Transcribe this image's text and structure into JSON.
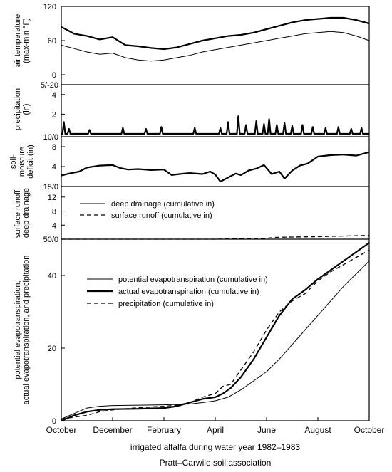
{
  "chart_data": {
    "type": "line",
    "shared_x": {
      "label": "irrigated alfalfa during water year 1982–1983",
      "ticks": [
        "October",
        "December",
        "February",
        "April",
        "June",
        "August",
        "October"
      ],
      "range": [
        0,
        12
      ],
      "tick_positions": [
        0,
        2,
        4,
        6,
        8,
        10,
        12
      ]
    },
    "footer": "Pratt–Carwile soil association",
    "panels": [
      {
        "id": "air-temperature",
        "ylabel": [
          "air temperature",
          "(max-min °F)"
        ],
        "yticks": [
          "120",
          "60",
          "0"
        ],
        "ytick_values": [
          120,
          60,
          0
        ],
        "ylim": [
          0,
          120
        ],
        "series": [
          {
            "style": "solid-thick",
            "x": [
              0,
              0.5,
              1,
              1.5,
              2,
              2.5,
              3,
              3.5,
              4,
              4.5,
              5,
              5.5,
              6,
              6.5,
              7,
              7.5,
              8,
              8.5,
              9,
              9.5,
              10,
              10.5,
              11,
              11.5,
              12
            ],
            "y": [
              84,
              72,
              68,
              62,
              66,
              52,
              50,
              47,
              45,
              48,
              54,
              60,
              64,
              68,
              70,
              74,
              80,
              86,
              92,
              96,
              98,
              100,
              100,
              96,
              90
            ]
          },
          {
            "style": "solid-thin",
            "x": [
              0,
              0.5,
              1,
              1.5,
              2,
              2.5,
              3,
              3.5,
              4,
              4.5,
              5,
              5.5,
              6,
              6.5,
              7,
              7.5,
              8,
              8.5,
              9,
              9.5,
              10,
              10.5,
              11,
              11.5,
              12
            ],
            "y": [
              52,
              46,
              40,
              36,
              38,
              30,
              26,
              24,
              26,
              30,
              34,
              40,
              44,
              48,
              52,
              56,
              60,
              64,
              68,
              72,
              74,
              76,
              74,
              68,
              60
            ]
          }
        ]
      },
      {
        "id": "precipitation",
        "ylabel": [
          "precipitation",
          "(in)"
        ],
        "yticks": [
          "4",
          "2"
        ],
        "ytick_values": [
          4,
          2
        ],
        "ylim": [
          0,
          5
        ],
        "top_label": "5/-20",
        "series": [
          {
            "style": "solid-thick",
            "x": [
              0.1,
              0.3,
              1.1,
              2.4,
              3.3,
              3.9,
              5.2,
              6.2,
              6.5,
              6.9,
              7.2,
              7.6,
              7.9,
              8.1,
              8.4,
              8.7,
              9.0,
              9.4,
              9.8,
              10.3,
              10.8,
              11.3,
              11.7
            ],
            "y": [
              1.2,
              0.5,
              0.4,
              0.6,
              0.5,
              0.7,
              0.6,
              0.6,
              1.2,
              1.8,
              0.9,
              1.3,
              1.0,
              1.5,
              0.9,
              1.1,
              0.8,
              0.9,
              0.7,
              0.6,
              0.7,
              0.5,
              0.6
            ]
          }
        ]
      },
      {
        "id": "soil-moisture-deficit",
        "ylabel": [
          "soil-",
          "moisture",
          "deficit (in)"
        ],
        "yticks": [
          "8",
          "4"
        ],
        "ytick_values": [
          8,
          4
        ],
        "ylim": [
          0,
          10
        ],
        "top_label": "10/0",
        "series": [
          {
            "style": "solid-thick",
            "x": [
              0,
              0.3,
              0.7,
              1,
              1.5,
              2,
              2.3,
              2.6,
              3,
              3.5,
              4,
              4.3,
              4.6,
              5,
              5.5,
              5.8,
              6,
              6.2,
              6.5,
              6.8,
              7,
              7.3,
              7.6,
              7.9,
              8.2,
              8.5,
              8.7,
              9,
              9.3,
              9.6,
              10,
              10.5,
              11,
              11.5,
              12
            ],
            "y": [
              2.2,
              2.6,
              3.0,
              3.8,
              4.2,
              4.3,
              3.7,
              3.4,
              3.5,
              3.3,
              3.4,
              2.3,
              2.5,
              2.7,
              2.5,
              3.0,
              2.4,
              1.0,
              1.8,
              2.6,
              2.3,
              3.2,
              3.6,
              4.3,
              2.5,
              3.0,
              1.6,
              3.2,
              4.2,
              4.6,
              6.0,
              6.3,
              6.4,
              6.2,
              6.9
            ]
          }
        ]
      },
      {
        "id": "surface-runoff-deep-drainage",
        "ylabel": [
          "surface runoff,",
          "deep drainage"
        ],
        "yticks": [
          "12",
          "8",
          "4"
        ],
        "ytick_values": [
          12,
          8,
          4
        ],
        "ylim": [
          0,
          15
        ],
        "top_label": "15/0",
        "legend": [
          "deep drainage (cumulative in)",
          "surface runoff (cumulative in)"
        ],
        "series": [
          {
            "name": "deep drainage (cumulative in)",
            "style": "solid-thin",
            "x": [
              0,
              12
            ],
            "y": [
              0,
              0
            ]
          },
          {
            "name": "surface runoff (cumulative in)",
            "style": "dashed",
            "x": [
              0,
              6,
              6.5,
              7.5,
              8,
              8.3,
              9,
              10,
              11,
              12
            ],
            "y": [
              0,
              0,
              0.1,
              0.2,
              0.25,
              0.5,
              0.6,
              0.7,
              0.9,
              1.1
            ]
          }
        ]
      },
      {
        "id": "evapotranspiration-precipitation",
        "ylabel": [
          "potential evapotranspiration,",
          "actual evapotranspiration, and precipitation"
        ],
        "yticks": [
          "40",
          "20",
          "0"
        ],
        "ytick_values": [
          40,
          20,
          0
        ],
        "ylim": [
          0,
          50
        ],
        "top_label": "50/0",
        "legend": [
          "potential evapotranspiration (cumulative in)",
          "actual evapotranspiration (cumulative in)",
          "precipitation (cumulative in)"
        ],
        "series": [
          {
            "name": "potential evapotranspiration (cumulative in)",
            "style": "solid-thin",
            "x": [
              0,
              0.5,
              1,
              1.5,
              2,
              3,
              4,
              5,
              5.5,
              6,
              6.5,
              7,
              7.5,
              8,
              8.5,
              9,
              9.5,
              10,
              10.5,
              11,
              11.5,
              12
            ],
            "y": [
              0.5,
              2,
              3.5,
              4,
              4.2,
              4.3,
              4.4,
              4.6,
              5,
              5.5,
              6.5,
              8.5,
              11,
              13.5,
              17,
              21,
              25,
              29,
              33,
              37,
              40.5,
              44
            ]
          },
          {
            "name": "actual evapotranspiration (cumulative in)",
            "style": "solid-thick",
            "x": [
              0,
              0.5,
              1,
              1.5,
              2,
              3,
              4,
              4.5,
              5,
              5.5,
              6,
              6.3,
              6.6,
              7,
              7.5,
              8,
              8.5,
              9,
              9.5,
              10,
              10.5,
              11,
              11.5,
              12
            ],
            "y": [
              0,
              1.5,
              2.5,
              3,
              3.2,
              3.3,
              3.5,
              4,
              5,
              6,
              6.5,
              7.5,
              9,
              12,
              17,
              23,
              29,
              33.5,
              36,
              39,
              41.5,
              44,
              46.5,
              49
            ]
          },
          {
            "name": "precipitation (cumulative in)",
            "style": "dashed",
            "x": [
              0,
              0.5,
              1,
              1.5,
              2,
              3,
              4,
              4.5,
              5,
              5.5,
              6,
              6.3,
              6.6,
              7,
              7.5,
              8,
              8.5,
              9,
              9.5,
              10,
              10.5,
              11,
              11.5,
              12
            ],
            "y": [
              0.5,
              1,
              1.5,
              2.5,
              3,
              3.6,
              4,
              4.3,
              5,
              6.5,
              7.5,
              9.5,
              10,
              14,
              19,
              25,
              30,
              33,
              35,
              38.5,
              41,
              43,
              45,
              47
            ]
          }
        ]
      }
    ]
  }
}
